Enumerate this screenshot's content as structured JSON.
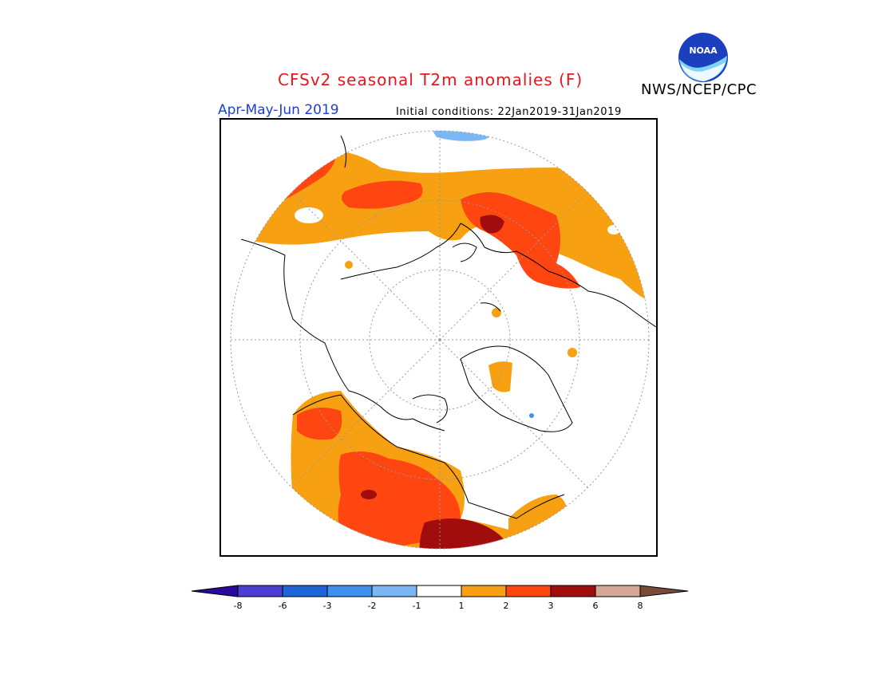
{
  "header": {
    "title": "CFSv2 seasonal T2m anomalies (F)",
    "agency": "NWS/NCEP/CPC",
    "season": "Apr-May-Jun 2019",
    "initial_conditions": "Initial conditions: 22Jan2019-31Jan2019",
    "logo_text": "NOAA"
  },
  "legend": {
    "ticks": [
      "-8",
      "-6",
      "-3",
      "-2",
      "-1",
      "1",
      "2",
      "3",
      "6",
      "8"
    ],
    "colors": [
      "#2a0a9c",
      "#4a3fd0",
      "#1f64d8",
      "#3f8fee",
      "#7ab8f5",
      "#ffffff",
      "#f7a012",
      "#ff4510",
      "#a10c0c",
      "#d4a894",
      "#7a4a38"
    ]
  },
  "colors": {
    "anomaly_1_2": "#f7a012",
    "anomaly_2_3": "#ff4510",
    "anomaly_3_6": "#a10c0c",
    "anomaly_m1_m2": "#7ab8f5",
    "title": "#e8161c",
    "season": "#1a3fd6"
  }
}
